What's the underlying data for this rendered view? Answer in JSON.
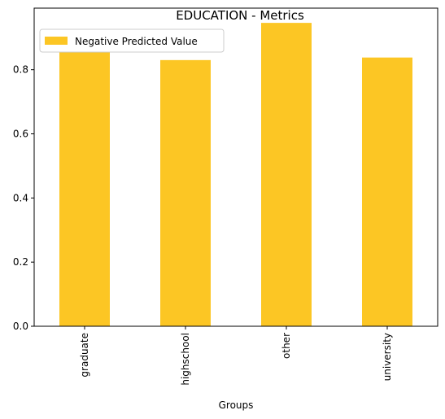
{
  "chart_data": {
    "type": "bar",
    "title": "EDUCATION - Metrics",
    "xlabel": "Groups",
    "ylabel": "",
    "categories": [
      "graduate",
      "highschool",
      "other",
      "university"
    ],
    "series": [
      {
        "name": "Negative Predicted Value",
        "values": [
          0.854,
          0.83,
          0.946,
          0.838
        ],
        "color": "#fcc624"
      }
    ],
    "ylim": [
      0,
      0.992
    ],
    "yticks": [
      0.0,
      0.2,
      0.4,
      0.6,
      0.8
    ],
    "ytick_labels": [
      "0.0",
      "0.2",
      "0.4",
      "0.6",
      "0.8"
    ],
    "grid": false,
    "legend_position": "top-left"
  }
}
